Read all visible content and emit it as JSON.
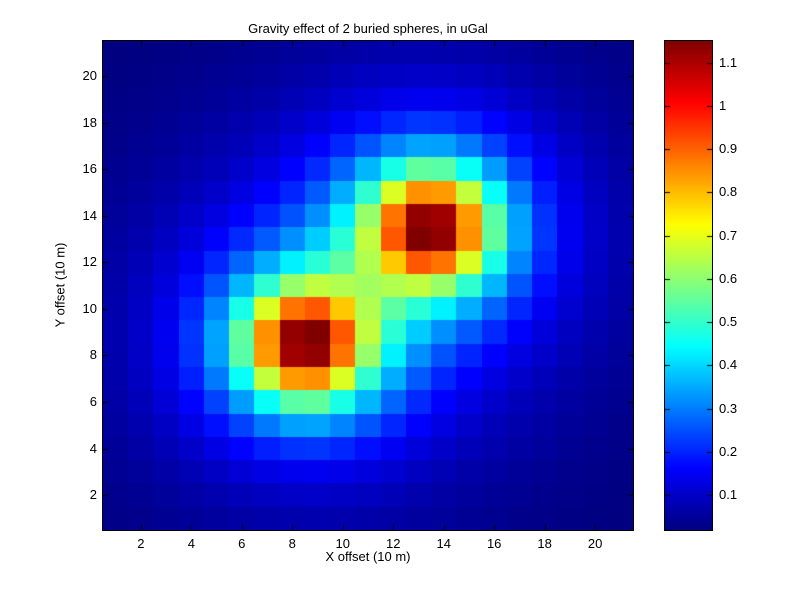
{
  "chart_data": {
    "type": "heatmap",
    "title": "Gravity effect of 2 buried spheres, in uGal",
    "xlabel": "X offset (10 m)",
    "ylabel": "Y offset (10 m)",
    "x_ticks": [
      2,
      4,
      6,
      8,
      10,
      12,
      14,
      16,
      18,
      20
    ],
    "y_ticks": [
      2,
      4,
      6,
      8,
      10,
      12,
      14,
      16,
      18,
      20
    ],
    "x_range": [
      0.5,
      21.5
    ],
    "y_range": [
      0.5,
      21.5
    ],
    "grid_size": [
      21,
      21
    ],
    "colormap": "jet",
    "value_range": [
      0.019,
      1.15
    ],
    "grid_on": false,
    "colorbar": {
      "position": "right",
      "tick_values": [
        0.1,
        0.2,
        0.3,
        0.4,
        0.5,
        0.6,
        0.7,
        0.8,
        0.9,
        1.0,
        1.1
      ],
      "tick_labels": [
        "0.1",
        "0.2",
        "0.3",
        "0.4",
        "0.5",
        "0.6",
        "0.7",
        "0.8",
        "0.9",
        "1",
        "1.1"
      ]
    },
    "values_rows_bottom_to_top": [
      [
        0.029,
        0.034,
        0.04,
        0.047,
        0.054,
        0.061,
        0.066,
        0.07,
        0.071,
        0.069,
        0.065,
        0.06,
        0.054,
        0.048,
        0.042,
        0.037,
        0.032,
        0.028,
        0.025,
        0.022,
        0.019
      ],
      [
        0.034,
        0.041,
        0.05,
        0.06,
        0.071,
        0.082,
        0.092,
        0.098,
        0.099,
        0.096,
        0.089,
        0.079,
        0.07,
        0.061,
        0.052,
        0.045,
        0.039,
        0.034,
        0.029,
        0.025,
        0.022
      ],
      [
        0.04,
        0.05,
        0.063,
        0.078,
        0.096,
        0.115,
        0.131,
        0.142,
        0.144,
        0.137,
        0.123,
        0.107,
        0.091,
        0.077,
        0.065,
        0.055,
        0.047,
        0.04,
        0.034,
        0.029,
        0.025
      ],
      [
        0.047,
        0.06,
        0.078,
        0.101,
        0.13,
        0.163,
        0.194,
        0.215,
        0.218,
        0.202,
        0.175,
        0.147,
        0.12,
        0.099,
        0.082,
        0.068,
        0.057,
        0.048,
        0.04,
        0.034,
        0.028
      ],
      [
        0.054,
        0.071,
        0.096,
        0.13,
        0.176,
        0.234,
        0.295,
        0.338,
        0.342,
        0.307,
        0.253,
        0.201,
        0.158,
        0.126,
        0.102,
        0.083,
        0.069,
        0.057,
        0.047,
        0.039,
        0.032
      ],
      [
        0.061,
        0.082,
        0.115,
        0.163,
        0.234,
        0.335,
        0.452,
        0.542,
        0.548,
        0.47,
        0.363,
        0.271,
        0.205,
        0.16,
        0.127,
        0.103,
        0.083,
        0.068,
        0.055,
        0.045,
        0.037
      ],
      [
        0.066,
        0.092,
        0.131,
        0.194,
        0.295,
        0.452,
        0.66,
        0.838,
        0.848,
        0.687,
        0.495,
        0.352,
        0.26,
        0.2,
        0.159,
        0.127,
        0.102,
        0.082,
        0.065,
        0.052,
        0.042
      ],
      [
        0.07,
        0.098,
        0.142,
        0.215,
        0.338,
        0.542,
        0.838,
        1.114,
        1.128,
        0.88,
        0.61,
        0.428,
        0.319,
        0.25,
        0.2,
        0.16,
        0.126,
        0.099,
        0.077,
        0.061,
        0.048
      ],
      [
        0.071,
        0.099,
        0.144,
        0.218,
        0.342,
        0.548,
        0.848,
        1.128,
        1.15,
        0.912,
        0.656,
        0.487,
        0.388,
        0.319,
        0.26,
        0.205,
        0.158,
        0.12,
        0.091,
        0.07,
        0.054
      ],
      [
        0.069,
        0.096,
        0.137,
        0.202,
        0.307,
        0.47,
        0.687,
        0.88,
        0.912,
        0.786,
        0.639,
        0.545,
        0.487,
        0.428,
        0.352,
        0.271,
        0.201,
        0.147,
        0.107,
        0.079,
        0.06
      ],
      [
        0.065,
        0.089,
        0.123,
        0.175,
        0.253,
        0.363,
        0.495,
        0.61,
        0.656,
        0.639,
        0.623,
        0.639,
        0.656,
        0.61,
        0.495,
        0.363,
        0.253,
        0.175,
        0.123,
        0.089,
        0.065
      ],
      [
        0.06,
        0.079,
        0.107,
        0.147,
        0.201,
        0.271,
        0.352,
        0.428,
        0.487,
        0.545,
        0.639,
        0.786,
        0.912,
        0.88,
        0.687,
        0.47,
        0.307,
        0.202,
        0.137,
        0.096,
        0.069
      ],
      [
        0.054,
        0.07,
        0.091,
        0.12,
        0.158,
        0.205,
        0.26,
        0.319,
        0.388,
        0.487,
        0.656,
        0.912,
        1.15,
        1.128,
        0.848,
        0.548,
        0.342,
        0.218,
        0.144,
        0.099,
        0.071
      ],
      [
        0.048,
        0.061,
        0.077,
        0.099,
        0.126,
        0.16,
        0.2,
        0.25,
        0.319,
        0.428,
        0.61,
        0.88,
        1.128,
        1.114,
        0.838,
        0.542,
        0.338,
        0.215,
        0.142,
        0.098,
        0.07
      ],
      [
        0.042,
        0.052,
        0.065,
        0.082,
        0.102,
        0.127,
        0.159,
        0.2,
        0.26,
        0.352,
        0.495,
        0.687,
        0.848,
        0.838,
        0.66,
        0.452,
        0.295,
        0.194,
        0.131,
        0.092,
        0.066
      ],
      [
        0.037,
        0.045,
        0.055,
        0.068,
        0.083,
        0.103,
        0.127,
        0.16,
        0.205,
        0.271,
        0.363,
        0.47,
        0.548,
        0.542,
        0.452,
        0.335,
        0.234,
        0.163,
        0.115,
        0.082,
        0.061
      ],
      [
        0.032,
        0.039,
        0.047,
        0.057,
        0.069,
        0.083,
        0.102,
        0.126,
        0.158,
        0.201,
        0.253,
        0.307,
        0.342,
        0.338,
        0.295,
        0.234,
        0.176,
        0.13,
        0.096,
        0.071,
        0.054
      ],
      [
        0.028,
        0.034,
        0.04,
        0.048,
        0.057,
        0.068,
        0.082,
        0.099,
        0.12,
        0.147,
        0.175,
        0.202,
        0.218,
        0.215,
        0.194,
        0.163,
        0.13,
        0.101,
        0.078,
        0.06,
        0.047
      ],
      [
        0.025,
        0.029,
        0.034,
        0.04,
        0.047,
        0.055,
        0.065,
        0.077,
        0.091,
        0.107,
        0.123,
        0.137,
        0.144,
        0.142,
        0.131,
        0.115,
        0.096,
        0.078,
        0.063,
        0.05,
        0.04
      ],
      [
        0.022,
        0.025,
        0.029,
        0.034,
        0.039,
        0.045,
        0.052,
        0.061,
        0.07,
        0.079,
        0.089,
        0.096,
        0.099,
        0.098,
        0.092,
        0.082,
        0.071,
        0.06,
        0.05,
        0.041,
        0.034
      ],
      [
        0.019,
        0.022,
        0.025,
        0.028,
        0.032,
        0.037,
        0.042,
        0.048,
        0.054,
        0.06,
        0.065,
        0.069,
        0.071,
        0.07,
        0.066,
        0.061,
        0.054,
        0.047,
        0.04,
        0.034,
        0.029
      ]
    ]
  }
}
